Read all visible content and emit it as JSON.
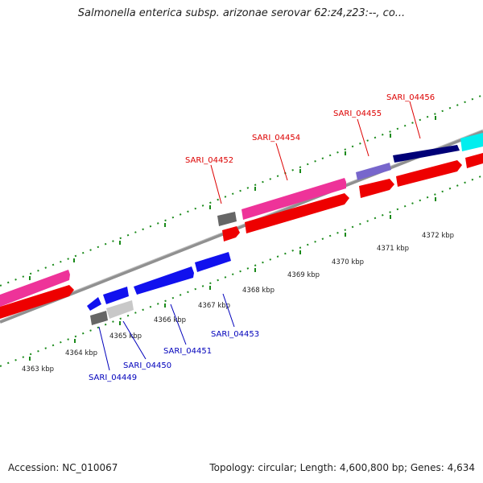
{
  "title": "Salmonella enterica subsp. arizonae serovar 62:z4,z23:--, co...",
  "footer": {
    "accession": "Accession: NC_010067",
    "summary": "Topology: circular; Length: 4,600,800 bp; Genes: 4,634"
  },
  "colors": {
    "backbone": "#909090",
    "tick": "#1a8a1a",
    "red_gene": "#ee0000",
    "pink_gene": "#ee3399",
    "blue_gene": "#1111ee",
    "navy_gene": "#000077",
    "purple_gene": "#7766cc",
    "cyan_gene": "#00eeee",
    "gray_gene": "#666666",
    "lightgray_gene": "#c8c8c8",
    "label_red": "#dd0000",
    "label_blue": "#0000bb"
  },
  "scale_labels": [
    "4363 kbp",
    "4364 kbp",
    "4365 kbp",
    "4366 kbp",
    "4367 kbp",
    "4368 kbp",
    "4369 kbp",
    "4370 kbp",
    "4371 kbp",
    "4372 kbp"
  ],
  "gene_labels_top": [
    "SARI_04452",
    "SARI_04454",
    "SARI_04455",
    "SARI_04456"
  ],
  "gene_labels_bottom": [
    "SARI_04449",
    "SARI_04450",
    "SARI_04451",
    "SARI_04453"
  ]
}
